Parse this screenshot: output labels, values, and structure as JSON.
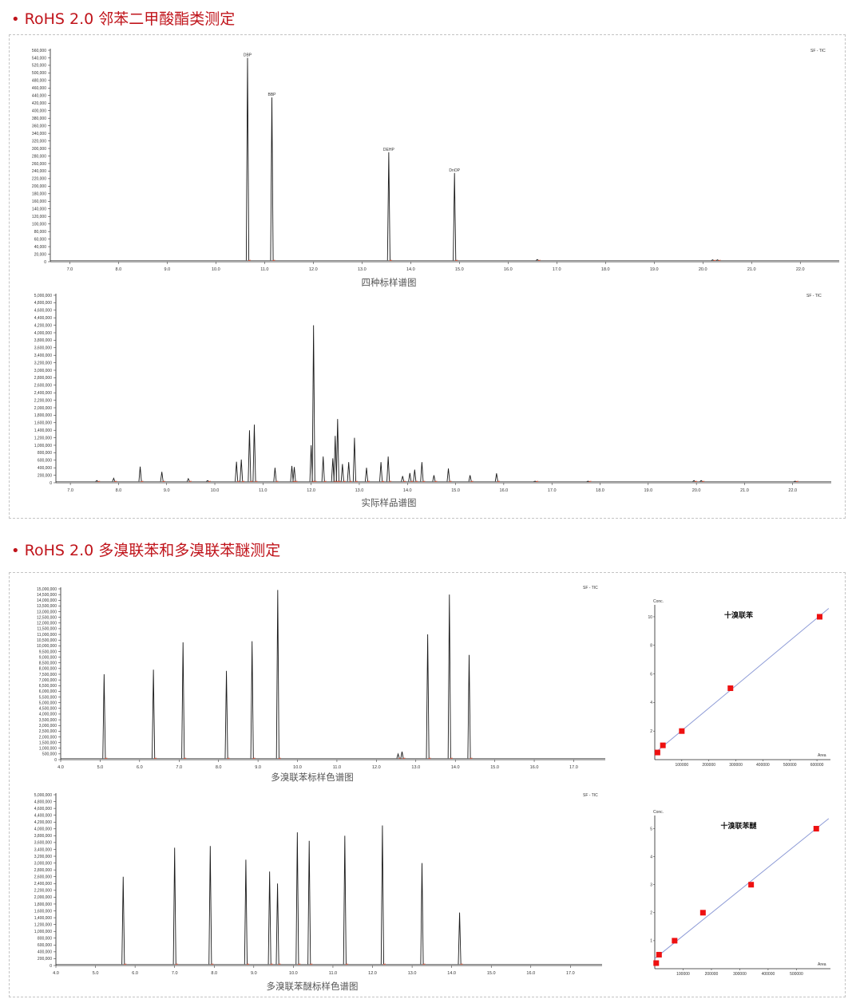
{
  "sections": [
    {
      "title": "RoHS 2.0 邻苯二甲酸酯类测定"
    },
    {
      "title": "RoHS 2.0 多溴联苯和多溴联苯醚测定"
    }
  ],
  "colors": {
    "accent": "#c0141b",
    "trace": "#1a1a1a",
    "baseline": "#e03a1a",
    "fit": "#8c9ad6",
    "point": "#ee1111"
  },
  "chart_data": [
    {
      "id": "std4",
      "type": "line",
      "caption": "四种标样谱图",
      "legend": "SF - TIC",
      "xlim": [
        6.6,
        22.8
      ],
      "ylim": [
        0,
        560000
      ],
      "xticks": [
        "7.0",
        "8.0",
        "9.0",
        "10.0",
        "11.0",
        "12.0",
        "13.0",
        "14.0",
        "15.0",
        "16.0",
        "17.0",
        "18.0",
        "19.0",
        "20.0",
        "21.0",
        "22.0"
      ],
      "yticks": [
        "0",
        "20,000",
        "40,000",
        "60,000",
        "80,000",
        "100,000",
        "120,000",
        "140,000",
        "160,000",
        "180,000",
        "200,000",
        "220,000",
        "240,000",
        "260,000",
        "280,000",
        "300,000",
        "320,000",
        "340,000",
        "360,000",
        "380,000",
        "400,000",
        "420,000",
        "440,000",
        "460,000",
        "480,000",
        "500,000",
        "520,000",
        "540,000",
        "560,000"
      ],
      "peaks": [
        {
          "x": 10.65,
          "y": 540000,
          "label": "DBP"
        },
        {
          "x": 11.15,
          "y": 435000,
          "label": "BBP"
        },
        {
          "x": 13.55,
          "y": 290000,
          "label": "DEHP"
        },
        {
          "x": 14.9,
          "y": 235000,
          "label": "DnOP"
        },
        {
          "x": 16.6,
          "y": 6000,
          "label": ""
        },
        {
          "x": 20.2,
          "y": 5000,
          "label": ""
        },
        {
          "x": 20.3,
          "y": 5000,
          "label": ""
        }
      ]
    },
    {
      "id": "real",
      "type": "line",
      "caption": "实际样品谱图",
      "legend": "SF - TIC",
      "xlim": [
        6.7,
        22.8
      ],
      "ylim": [
        0,
        5000000
      ],
      "xticks": [
        "7.0",
        "8.0",
        "9.0",
        "10.0",
        "11.0",
        "12.0",
        "13.0",
        "14.0",
        "15.0",
        "16.0",
        "17.0",
        "18.0",
        "19.0",
        "20.0",
        "21.0",
        "22.0"
      ],
      "yticks": [
        "0",
        "200,000",
        "400,000",
        "600,000",
        "800,000",
        "1,000,000",
        "1,200,000",
        "1,400,000",
        "1,600,000",
        "1,800,000",
        "2,000,000",
        "2,200,000",
        "2,400,000",
        "2,600,000",
        "2,800,000",
        "3,000,000",
        "3,200,000",
        "3,400,000",
        "3,600,000",
        "3,800,000",
        "4,000,000",
        "4,200,000",
        "4,400,000",
        "4,600,000",
        "4,800,000",
        "5,000,000"
      ],
      "peaks": [
        {
          "x": 7.55,
          "y": 60000
        },
        {
          "x": 7.9,
          "y": 120000
        },
        {
          "x": 8.45,
          "y": 430000
        },
        {
          "x": 8.9,
          "y": 290000
        },
        {
          "x": 9.45,
          "y": 110000
        },
        {
          "x": 9.85,
          "y": 60000
        },
        {
          "x": 10.45,
          "y": 560000
        },
        {
          "x": 10.55,
          "y": 620000
        },
        {
          "x": 10.72,
          "y": 1400000
        },
        {
          "x": 10.82,
          "y": 1550000
        },
        {
          "x": 11.25,
          "y": 400000
        },
        {
          "x": 11.6,
          "y": 450000
        },
        {
          "x": 11.65,
          "y": 420000
        },
        {
          "x": 12.0,
          "y": 1000000
        },
        {
          "x": 12.05,
          "y": 4200000
        },
        {
          "x": 12.25,
          "y": 700000
        },
        {
          "x": 12.45,
          "y": 650000
        },
        {
          "x": 12.5,
          "y": 1250000
        },
        {
          "x": 12.55,
          "y": 1700000
        },
        {
          "x": 12.65,
          "y": 500000
        },
        {
          "x": 12.78,
          "y": 550000
        },
        {
          "x": 12.9,
          "y": 1200000
        },
        {
          "x": 13.15,
          "y": 400000
        },
        {
          "x": 13.45,
          "y": 550000
        },
        {
          "x": 13.6,
          "y": 700000
        },
        {
          "x": 13.9,
          "y": 180000
        },
        {
          "x": 14.05,
          "y": 260000
        },
        {
          "x": 14.15,
          "y": 350000
        },
        {
          "x": 14.3,
          "y": 550000
        },
        {
          "x": 14.55,
          "y": 200000
        },
        {
          "x": 14.85,
          "y": 380000
        },
        {
          "x": 15.3,
          "y": 200000
        },
        {
          "x": 15.85,
          "y": 250000
        },
        {
          "x": 16.65,
          "y": 40000
        },
        {
          "x": 17.75,
          "y": 40000
        },
        {
          "x": 19.95,
          "y": 60000
        },
        {
          "x": 20.1,
          "y": 60000
        },
        {
          "x": 22.05,
          "y": 40000
        }
      ]
    },
    {
      "id": "pbb",
      "type": "line",
      "caption": "多溴联苯标样色谱图",
      "legend": "SF - TIC",
      "xlim": [
        4.0,
        17.8
      ],
      "ylim": [
        0,
        15000000
      ],
      "xticks": [
        "4.0",
        "5.0",
        "6.0",
        "7.0",
        "8.0",
        "9.0",
        "10.0",
        "11.0",
        "12.0",
        "13.0",
        "14.0",
        "15.0",
        "16.0",
        "17.0"
      ],
      "yticks": [
        "0",
        "500,000",
        "1,000,000",
        "1,500,000",
        "2,000,000",
        "2,500,000",
        "3,000,000",
        "3,500,000",
        "4,000,000",
        "4,500,000",
        "5,000,000",
        "5,500,000",
        "6,000,000",
        "6,500,000",
        "7,000,000",
        "7,500,000",
        "8,000,000",
        "8,500,000",
        "9,000,000",
        "9,500,000",
        "10,000,000",
        "10,500,000",
        "11,000,000",
        "11,500,000",
        "12,000,000",
        "12,500,000",
        "13,000,000",
        "13,500,000",
        "14,000,000",
        "14,500,000",
        "15,000,000"
      ],
      "peaks": [
        {
          "x": 5.1,
          "y": 7500000
        },
        {
          "x": 6.35,
          "y": 7900000
        },
        {
          "x": 7.1,
          "y": 10300000
        },
        {
          "x": 8.2,
          "y": 7800000
        },
        {
          "x": 8.85,
          "y": 10400000
        },
        {
          "x": 9.5,
          "y": 14900000
        },
        {
          "x": 12.55,
          "y": 500000
        },
        {
          "x": 12.65,
          "y": 700000
        },
        {
          "x": 13.3,
          "y": 11000000
        },
        {
          "x": 13.85,
          "y": 14500000
        },
        {
          "x": 14.35,
          "y": 9200000
        }
      ]
    },
    {
      "id": "pbde",
      "type": "line",
      "caption": "多溴联苯醚标样色谱图",
      "legend": "SF - TIC",
      "xlim": [
        4.0,
        17.8
      ],
      "ylim": [
        0,
        5000000
      ],
      "xticks": [
        "4.0",
        "5.0",
        "6.0",
        "7.0",
        "8.0",
        "9.0",
        "10.0",
        "11.0",
        "12.0",
        "13.0",
        "14.0",
        "15.0",
        "16.0",
        "17.0"
      ],
      "yticks": [
        "0",
        "200,000",
        "400,000",
        "600,000",
        "800,000",
        "1,000,000",
        "1,200,000",
        "1,400,000",
        "1,600,000",
        "1,800,000",
        "2,000,000",
        "2,200,000",
        "2,400,000",
        "2,600,000",
        "2,800,000",
        "3,000,000",
        "3,200,000",
        "3,400,000",
        "3,600,000",
        "3,800,000",
        "4,000,000",
        "4,200,000",
        "4,400,000",
        "4,600,000",
        "4,800,000",
        "5,000,000"
      ],
      "peaks": [
        {
          "x": 5.7,
          "y": 2600000
        },
        {
          "x": 7.0,
          "y": 3450000
        },
        {
          "x": 7.9,
          "y": 3500000
        },
        {
          "x": 8.8,
          "y": 3100000
        },
        {
          "x": 9.4,
          "y": 2750000
        },
        {
          "x": 9.6,
          "y": 2400000
        },
        {
          "x": 10.1,
          "y": 3900000
        },
        {
          "x": 10.4,
          "y": 3650000
        },
        {
          "x": 11.3,
          "y": 3800000
        },
        {
          "x": 12.25,
          "y": 4100000
        },
        {
          "x": 13.25,
          "y": 3000000
        },
        {
          "x": 14.2,
          "y": 1550000
        }
      ]
    },
    {
      "id": "cal1",
      "type": "scatter",
      "title": "十溴联苯",
      "ylabel": "Conc.",
      "xlabel": "Area",
      "xlim": [
        0,
        650000
      ],
      "ylim": [
        0,
        10.5
      ],
      "xticks": [
        "100000",
        "200000",
        "300000",
        "400000",
        "500000",
        "600000"
      ],
      "yticks": [
        "2",
        "4",
        "6",
        "8",
        "10"
      ],
      "points": [
        {
          "x": 10000,
          "y": 0.5
        },
        {
          "x": 30000,
          "y": 1
        },
        {
          "x": 100000,
          "y": 2
        },
        {
          "x": 280000,
          "y": 5
        },
        {
          "x": 610000,
          "y": 10
        }
      ]
    },
    {
      "id": "cal2",
      "type": "scatter",
      "title": "十溴联苯醚",
      "ylabel": "Conc.",
      "xlabel": "Area",
      "xlim": [
        0,
        620000
      ],
      "ylim": [
        0,
        5.3
      ],
      "xticks": [
        "100000",
        "200000",
        "300000",
        "400000",
        "500000"
      ],
      "yticks": [
        "1",
        "2",
        "3",
        "4",
        "5"
      ],
      "points": [
        {
          "x": 5000,
          "y": 0.2
        },
        {
          "x": 15000,
          "y": 0.5
        },
        {
          "x": 70000,
          "y": 1
        },
        {
          "x": 170000,
          "y": 2
        },
        {
          "x": 340000,
          "y": 3
        },
        {
          "x": 570000,
          "y": 5
        }
      ]
    }
  ]
}
